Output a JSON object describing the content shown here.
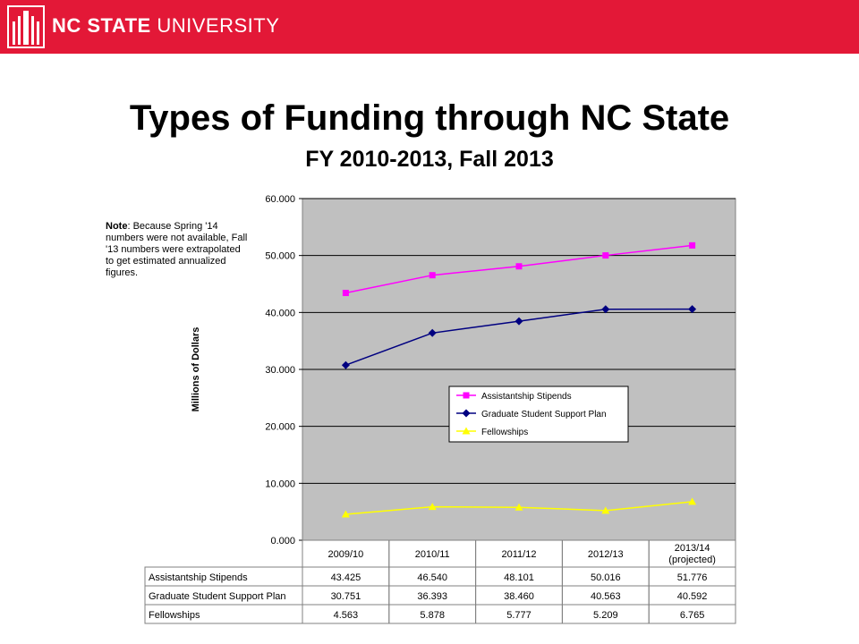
{
  "header": {
    "brand_bold": "NC STATE",
    "brand_rest": " UNIVERSITY",
    "logo_icon": "nc-state-belltower-logo-icon",
    "color": "#e31837"
  },
  "slide": {
    "title": "Types of Funding through NC State",
    "subtitle": "FY 2010-2013, Fall 2013",
    "note_label": "Note",
    "note_text": ": Because Spring '14 numbers were not available, Fall '13 numbers were extrapolated to get estimated annualized figures."
  },
  "chart_data": {
    "type": "line",
    "ylabel": "Millions of Dollars",
    "ylim": [
      0,
      60
    ],
    "yticks": [
      "0.000",
      "10.000",
      "20.000",
      "30.000",
      "40.000",
      "50.000",
      "60.000"
    ],
    "grid": true,
    "legend_position": "center",
    "categories": [
      "2009/10",
      "2010/11",
      "2011/12",
      "2012/13",
      "2013/14 (projected)"
    ],
    "category_lines": [
      [
        "2009/10"
      ],
      [
        "2010/11"
      ],
      [
        "2011/12"
      ],
      [
        "2012/13"
      ],
      [
        "2013/14",
        "(projected)"
      ]
    ],
    "series": [
      {
        "name": "Assistantship Stipends",
        "color": "#ff00ff",
        "marker": "square",
        "values": [
          43.425,
          46.54,
          48.101,
          50.016,
          51.776
        ],
        "labels": [
          "43.425",
          "46.540",
          "48.101",
          "50.016",
          "51.776"
        ]
      },
      {
        "name": "Graduate Student Support Plan",
        "color": "#000080",
        "marker": "diamond",
        "values": [
          30.751,
          36.393,
          38.46,
          40.563,
          40.592
        ],
        "labels": [
          "30.751",
          "36.393",
          "38.460",
          "40.563",
          "40.592"
        ]
      },
      {
        "name": "Fellowships",
        "color": "#ffff00",
        "marker": "triangle",
        "values": [
          4.563,
          5.878,
          5.777,
          5.209,
          6.765
        ],
        "labels": [
          "4.563",
          "5.878",
          "5.777",
          "5.209",
          "6.765"
        ]
      }
    ]
  }
}
